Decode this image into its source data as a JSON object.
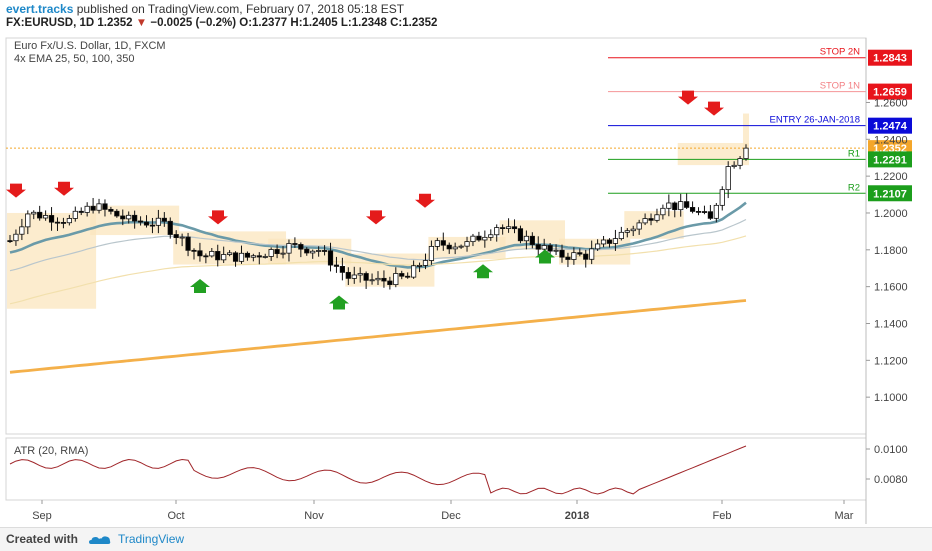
{
  "header": {
    "publisher": "evert.tracks",
    "published_text": "published on TradingView.com, February 07, 2018 05:18 EST",
    "symbol": "FX:EURUSD, 1D",
    "last": "1.2352",
    "change": "−0.0025 (−0.2%)",
    "ohlc": "O:1.2377 H:1.2405 L:1.2348 C:1.2352"
  },
  "legend": {
    "title": "Euro Fx/U.S. Dollar, 1D, FXCM",
    "indicators": "4x EMA 25, 50, 100, 350"
  },
  "footer": {
    "created_with": "Created with",
    "brand": "TradingView"
  },
  "colors": {
    "up": "#ffffff",
    "down": "#000000",
    "ema25": "#6a9aa8",
    "ema50": "#b9c6cc",
    "ema100": "#f2e0ad",
    "ema350": "#f4b04a",
    "atr": "#a0262a",
    "zone": "#fbe6bd",
    "stop": "#e8141b",
    "entry": "#0a0ad8",
    "support": "#1c9e1c",
    "last": "#f4a62a",
    "arrow_up": "#22a022",
    "arrow_down": "#e41b1b"
  },
  "chart_data": {
    "type": "candlestick",
    "y_range": [
      1.08,
      1.295
    ],
    "y_ticks": [
      "1.2600",
      "1.2400",
      "1.2200",
      "1.2000",
      "1.1800",
      "1.1600",
      "1.1400",
      "1.1200",
      "1.1000"
    ],
    "x_ticks": [
      "Sep",
      "Oct",
      "Nov",
      "Dec",
      "2018",
      "Feb",
      "Mar"
    ],
    "levels": [
      {
        "name": "STOP 2N",
        "value": 1.2843,
        "label": "1.2843",
        "color": "stop"
      },
      {
        "name": "STOP 1N",
        "value": 1.2659,
        "label": "1.2659",
        "color": "stop"
      },
      {
        "name": "ENTRY 26-JAN-2018",
        "value": 1.2474,
        "label": "1.2474",
        "color": "entry"
      },
      {
        "name": "",
        "value": 1.2352,
        "label": "1.2352",
        "color": "last"
      },
      {
        "name": "R1",
        "value": 1.2291,
        "label": "1.2291",
        "color": "support"
      },
      {
        "name": "R2",
        "value": 1.2107,
        "label": "1.2107",
        "color": "support"
      }
    ],
    "atr": {
      "title": "ATR (20, RMA)",
      "y_ticks": [
        "0.0100",
        "0.0080"
      ],
      "y_range": [
        0.0066,
        0.0106
      ]
    },
    "candles_approx_count": 125
  }
}
